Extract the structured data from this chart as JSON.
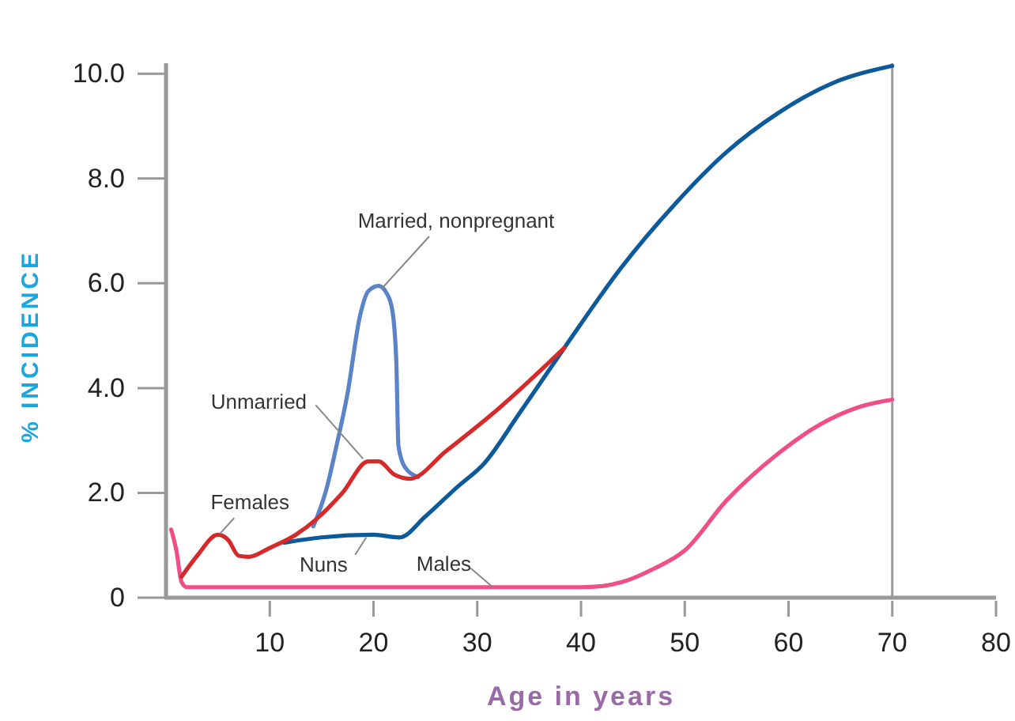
{
  "chart_data": {
    "type": "line",
    "xlabel": "Age in years",
    "ylabel": "% INCIDENCE",
    "xlim": [
      0,
      80
    ],
    "xticks": [
      10,
      20,
      30,
      40,
      50,
      60,
      70,
      80
    ],
    "ylim": [
      0,
      10.2
    ],
    "yticks": [
      {
        "value": 0,
        "label": "0"
      },
      {
        "value": 2,
        "label": "2.0"
      },
      {
        "value": 4,
        "label": "4.0"
      },
      {
        "value": 6,
        "label": "6.0"
      },
      {
        "value": 8,
        "label": "8.0"
      },
      {
        "value": 10,
        "label": "10.0"
      }
    ],
    "grid": false,
    "legend": false,
    "marker": "none",
    "line_style": "solid",
    "series": [
      {
        "color": "#ef4f84",
        "x": [
          0.5,
          1,
          1.5,
          2,
          5,
          10,
          20,
          30,
          40,
          42,
          44,
          47,
          50,
          54,
          59,
          63,
          67,
          70
        ],
        "values": [
          1.3,
          0.9,
          0.3,
          0.2,
          0.2,
          0.2,
          0.2,
          0.2,
          0.2,
          0.22,
          0.3,
          0.55,
          0.9,
          1.85,
          2.75,
          3.3,
          3.65,
          3.78
        ]
      },
      {
        "color": "#0d5a9a",
        "x": [
          11.4,
          15,
          20,
          22.5,
          25,
          28,
          30.7,
          34,
          38.4,
          43.8,
          49,
          54,
          59,
          64,
          70
        ],
        "values": [
          1.05,
          1.15,
          1.2,
          1.15,
          1.55,
          2.1,
          2.57,
          3.5,
          4.77,
          6.28,
          7.5,
          8.5,
          9.25,
          9.8,
          10.15
        ]
      },
      {
        "color": "#5b84c8",
        "x": [
          14.2,
          15.5,
          16.4,
          17.5,
          18.7,
          19.5,
          20.5,
          21.3,
          21.8,
          22.2,
          22.4,
          23,
          24.3
        ],
        "values": [
          1.36,
          2.1,
          2.87,
          3.9,
          5.38,
          5.85,
          5.95,
          5.8,
          5.5,
          4.5,
          2.9,
          2.5,
          2.3
        ]
      },
      {
        "color": "#d42a2a",
        "x": [
          1.5,
          3,
          5,
          6,
          7,
          8,
          10,
          12.5,
          14.5,
          17,
          19.5,
          20.5,
          22,
          23.5,
          27,
          32,
          38.4
        ],
        "values": [
          0.4,
          0.8,
          1.2,
          1.1,
          0.8,
          0.78,
          0.95,
          1.2,
          1.5,
          2.0,
          2.6,
          2.6,
          2.35,
          2.27,
          2.8,
          3.6,
          4.77
        ]
      }
    ],
    "ref_lines": [
      {
        "axis": "x",
        "value": 70,
        "color": "#999999"
      }
    ],
    "annotations": [
      {
        "text": "Married, nonpregnant",
        "x": 20.8,
        "y": 5.9
      },
      {
        "text": "Unmarried",
        "x": 19,
        "y": 2.65
      },
      {
        "text": "Females",
        "x": 5.2,
        "y": 1.22
      },
      {
        "text": "Nuns",
        "x": 19.3,
        "y": 1.15
      },
      {
        "text": "Males",
        "x": 31.5,
        "y": 0.2
      }
    ]
  }
}
